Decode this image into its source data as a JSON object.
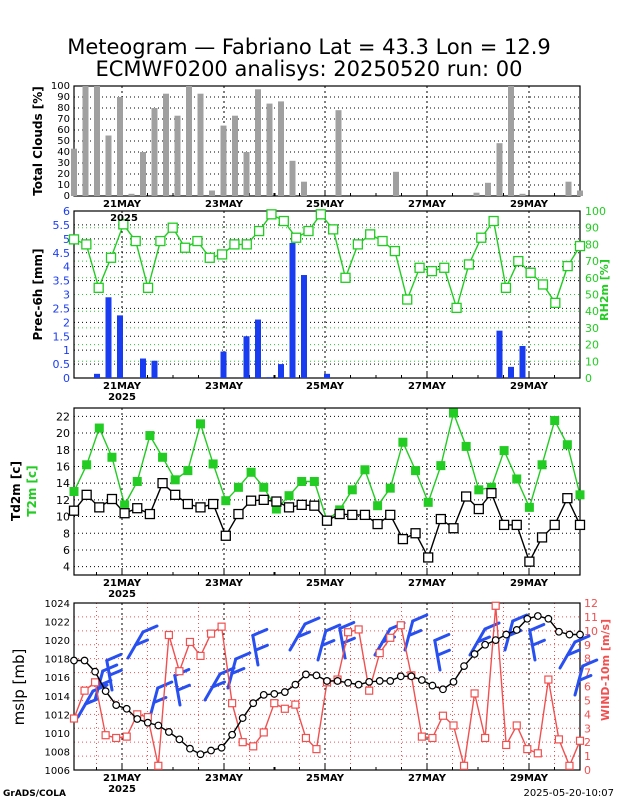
{
  "title_line1": "Meteogram — Fabriano Lat = 43.3 Lon = 12.9",
  "title_line2": "ECMWF0200 analisys: 20250520 run: 00",
  "footer_left": "GrADS/COLA",
  "footer_right": "2025-05-20-10:07",
  "colors": {
    "bar_grey": "#a0a0a0",
    "precip_blue": "#1a3cf0",
    "rh_green": "#22cc22",
    "t2m_green": "#22cc22",
    "wind_red": "#f05050",
    "barb_blue": "#2850f0",
    "axis_black": "#000000"
  },
  "chart_data": [
    {
      "type": "bar",
      "panel": "clouds",
      "ylabel": "Total Clouds [%]",
      "ylim": [
        0,
        100
      ],
      "yticks": [
        0,
        10,
        20,
        30,
        40,
        50,
        60,
        70,
        80,
        90,
        100
      ],
      "x_date_labels": [
        "21MAY",
        "23MAY",
        "25MAY",
        "27MAY",
        "29MAY"
      ],
      "values": [
        43,
        100,
        100,
        55,
        90,
        2,
        40,
        80,
        93,
        73,
        100,
        93,
        5,
        64,
        73,
        40,
        97,
        84,
        86,
        32,
        13,
        0,
        0,
        78,
        0,
        0,
        0,
        0,
        22,
        0,
        0,
        0,
        0,
        0,
        0,
        3,
        12,
        48,
        100,
        2,
        0,
        0,
        0,
        13,
        5
      ]
    },
    {
      "type": "bar+line",
      "panel": "precip_rh",
      "ylabel": "Prec-6h [mm]",
      "ylabel_right": "RH2m [%]",
      "ylim": [
        0,
        6
      ],
      "yticks": [
        "0",
        "0.5",
        "1",
        "1.5",
        "2",
        "2.5",
        "3",
        "3.5",
        "4",
        "4.5",
        "5",
        "5.5",
        "6"
      ],
      "ylim_right": [
        0,
        100
      ],
      "yticks_right": [
        0,
        10,
        20,
        30,
        40,
        50,
        60,
        70,
        80,
        90,
        100
      ],
      "x_date_labels": [
        "21MAY",
        "23MAY",
        "25MAY",
        "27MAY",
        "29MAY"
      ],
      "year_label": "2025",
      "precip": [
        0,
        0,
        0.15,
        2.9,
        2.25,
        0,
        0.7,
        0.62,
        0,
        0,
        0,
        0,
        0,
        0.95,
        0,
        1.5,
        2.1,
        0.03,
        0.5,
        4.85,
        3.7,
        0,
        0.15,
        0,
        0,
        0,
        0,
        0,
        0,
        0,
        0,
        0,
        0,
        0,
        0,
        0,
        0,
        1.7,
        0.4,
        1.15,
        0,
        0,
        0,
        0,
        0
      ],
      "rh": [
        83,
        80,
        54,
        72,
        92,
        82,
        54,
        82,
        90,
        78,
        82,
        72,
        74,
        80,
        80,
        88,
        98,
        94,
        84,
        88,
        98,
        89,
        60,
        80,
        86,
        82,
        76,
        47,
        66,
        64,
        66,
        42,
        68,
        84,
        94,
        54,
        70,
        63,
        56,
        45,
        67,
        79
      ]
    },
    {
      "type": "line",
      "panel": "temps",
      "ylabel_parts": [
        "Td2m [c]",
        "T2m [c]"
      ],
      "ylim": [
        3,
        23
      ],
      "yticks": [
        4,
        6,
        8,
        10,
        12,
        14,
        16,
        18,
        20,
        22
      ],
      "x_date_labels": [
        "21MAY",
        "23MAY",
        "25MAY",
        "27MAY",
        "29MAY"
      ],
      "year_label": "2025",
      "series": [
        {
          "values": [
            13,
            16.2,
            20.6,
            17.1,
            11.4,
            14.2,
            19.7,
            17.1,
            14.4,
            15.5,
            21.1,
            16.3,
            11.9,
            13.5,
            15.3,
            13.5,
            10.9,
            12.5,
            14.2,
            14.2,
            9.5,
            10.8,
            13.2,
            15.6,
            11.3,
            13.4,
            18.9,
            15.5,
            11.7,
            16.1,
            22.4,
            18.4,
            13.2,
            13.5,
            17.9,
            14.5,
            11.1,
            16.2,
            21.5,
            18.6,
            12.6
          ]
        },
        {
          "values": [
            10.7,
            12.6,
            11.1,
            12.1,
            10.4,
            11,
            10.3,
            14,
            12.6,
            11.5,
            11.1,
            11.5,
            7.7,
            10.3,
            11.9,
            12,
            11.8,
            11.1,
            11.4,
            11.3,
            9.5,
            10.3,
            10.2,
            10.2,
            9.1,
            10.2,
            7.3,
            8,
            5.1,
            9.7,
            8.6,
            12.4,
            10.9,
            12.8,
            9,
            9,
            4.6,
            7.5,
            9,
            12.2,
            9
          ]
        }
      ]
    },
    {
      "type": "line",
      "panel": "mslp_wind",
      "ylabel": "mslp [mb]",
      "ylabel_right": "WIND-10m [m/s]",
      "ylim": [
        1006,
        1024
      ],
      "yticks": [
        1006,
        1008,
        1010,
        1012,
        1014,
        1016,
        1018,
        1020,
        1022,
        1024
      ],
      "ylim_right": [
        0,
        12
      ],
      "yticks_right": [
        0,
        1,
        2,
        3,
        4,
        5,
        6,
        7,
        8,
        9,
        10,
        11,
        12
      ],
      "x_date_labels": [
        "21MAY",
        "23MAY",
        "25MAY",
        "27MAY",
        "29MAY"
      ],
      "year_label": "2025",
      "series": [
        {
          "values": [
            1017.8,
            1017.8,
            1016.6,
            1014.5,
            1013,
            1012.6,
            1011.5,
            1011.1,
            1010.8,
            1010.1,
            1009.3,
            1008.3,
            1007.7,
            1008.1,
            1008.4,
            1009.8,
            1011.6,
            1013.2,
            1014.1,
            1014.2,
            1014.4,
            1015.2,
            1016.3,
            1016.2,
            1015.6,
            1015.6,
            1015.4,
            1015.2,
            1015.5,
            1015.6,
            1015.6,
            1016.1,
            1016.1,
            1015.7,
            1015.1,
            1014.7,
            1015.5,
            1017.2,
            1018.5,
            1019.5,
            1020,
            1020.6,
            1021.1,
            1022.3,
            1022.6,
            1022.3,
            1020.9,
            1020.6,
            1020.6
          ]
        },
        {
          "values": [
            3.7,
            5.7,
            6.3,
            2.5,
            2.3,
            2.4,
            4,
            3.8,
            0.3,
            9.7,
            7.1,
            9.2,
            8.2,
            9.8,
            10.3,
            4.8,
            2,
            1.7,
            2.7,
            4.8,
            4.4,
            4.7,
            2.3,
            1.5,
            6.3,
            6.5,
            9.9,
            10.1,
            5.7,
            8.4,
            9.5,
            10.4,
            6.8,
            2.4,
            2.3,
            3.9,
            3.2,
            0.3,
            5.5,
            2.3,
            11.8,
            1.8,
            3.2,
            1.5,
            1.2,
            6.5,
            2.2,
            0.3,
            2.1
          ]
        }
      ]
    }
  ]
}
